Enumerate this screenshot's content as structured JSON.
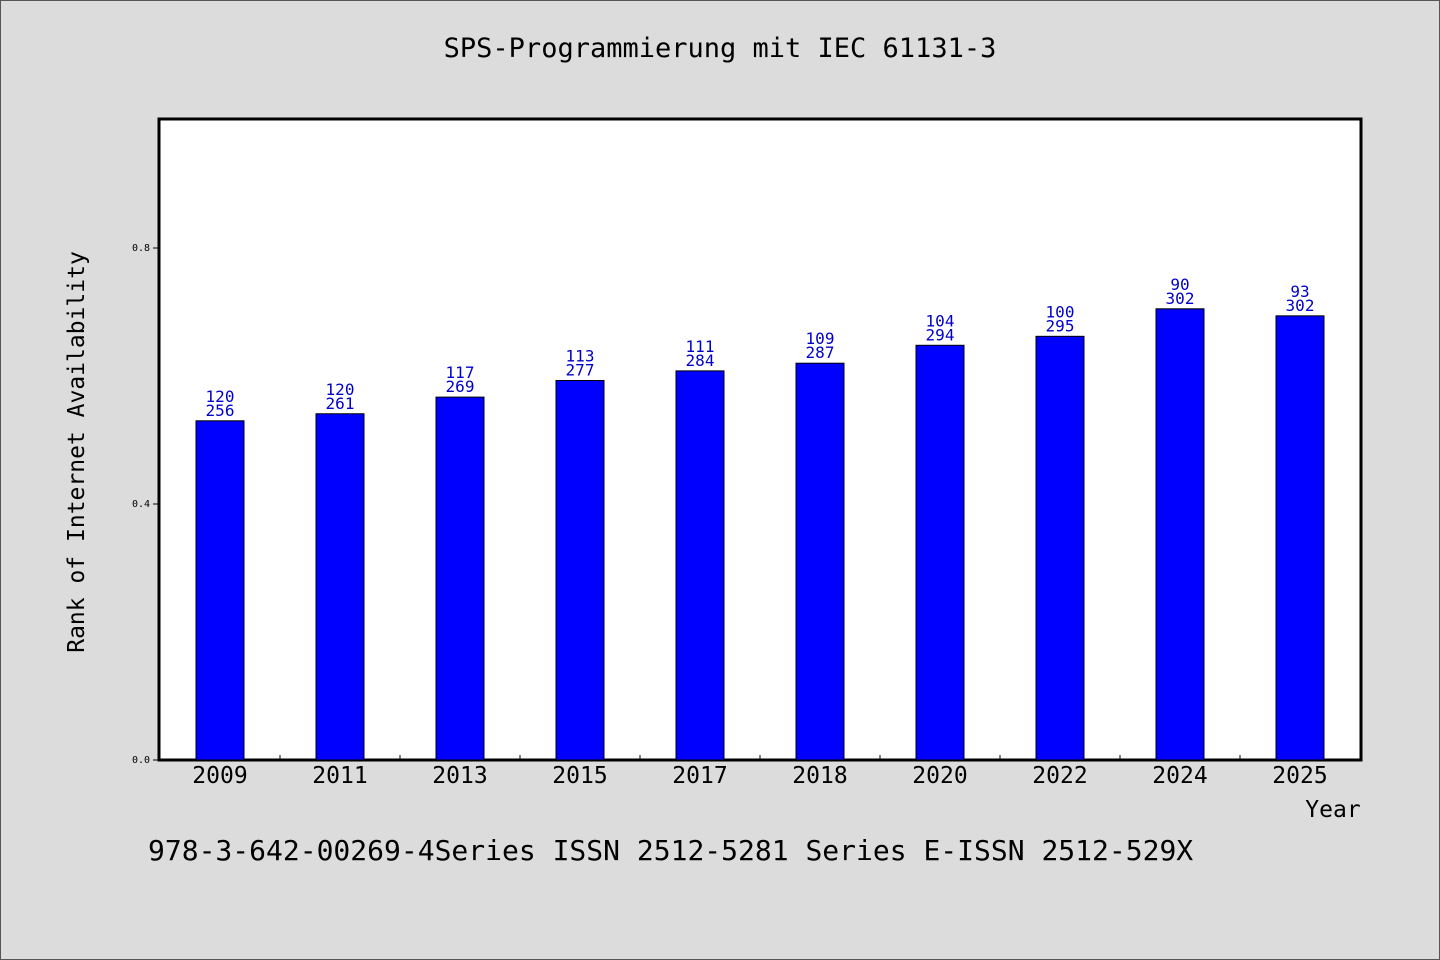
{
  "chart_data": {
    "type": "bar",
    "title": "SPS-Programmierung mit IEC 61131-3",
    "xlabel": "Year",
    "ylabel": "Rank of Internet Availability",
    "categories": [
      "2009",
      "2011",
      "2013",
      "2015",
      "2017",
      "2018",
      "2020",
      "2022",
      "2024",
      "2025"
    ],
    "values": [
      0.53,
      0.541,
      0.567,
      0.593,
      0.608,
      0.62,
      0.648,
      0.662,
      0.705,
      0.694
    ],
    "labels_top": [
      "120",
      "120",
      "117",
      "113",
      "111",
      "109",
      "104",
      "100",
      "90",
      "93"
    ],
    "labels_bottom": [
      "256",
      "261",
      "269",
      "277",
      "284",
      "287",
      "294",
      "295",
      "302",
      "302"
    ],
    "ylim": [
      0,
      1.0
    ],
    "yticks": [
      0.0,
      0.4,
      0.8
    ],
    "ytick_labels": [
      "0.0",
      "0.4",
      "0.8"
    ],
    "grid": false,
    "bar_color": "#0000ff",
    "label_color": "#0000cc"
  },
  "footer": "978-3-642-00269-4Series ISSN 2512-5281 Series E-ISSN 2512-529X"
}
